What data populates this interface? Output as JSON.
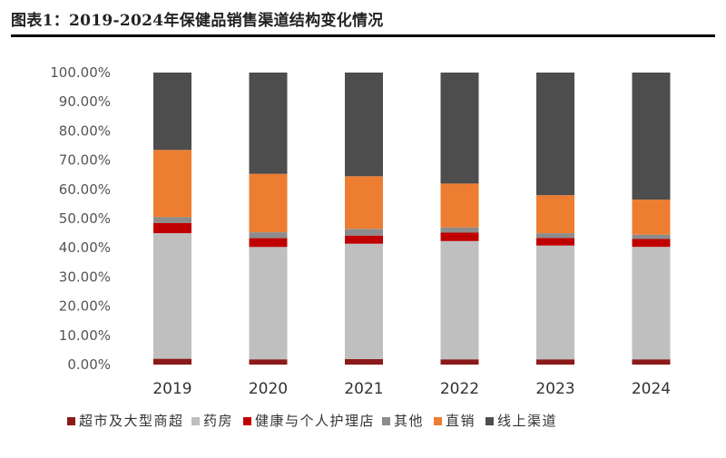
{
  "header": {
    "title": "图表1：2019-2024年保健品销售渠道结构变化情况"
  },
  "colors": {
    "超市及大型商超": "#8b1a1a",
    "药房": "#bfbfbf",
    "健康与个人护理店": "#c00000",
    "其他": "#8c8c8c",
    "直销": "#ed7d31",
    "线上渠道": "#4d4d4d"
  },
  "chart_data": {
    "type": "bar",
    "stacked": true,
    "categories": [
      "2019",
      "2020",
      "2021",
      "2022",
      "2023",
      "2024"
    ],
    "ylim": [
      0,
      100
    ],
    "yticks": [
      "0.00%",
      "10.00%",
      "20.00%",
      "30.00%",
      "40.00%",
      "50.00%",
      "60.00%",
      "70.00%",
      "80.00%",
      "90.00%",
      "100.00%"
    ],
    "series": [
      {
        "name": "超市及大型商超",
        "values": [
          2.0,
          1.8,
          1.9,
          1.8,
          1.8,
          1.8
        ]
      },
      {
        "name": "药房",
        "values": [
          43.0,
          38.5,
          39.5,
          40.5,
          39.0,
          38.5
        ]
      },
      {
        "name": "健康与个人护理店",
        "values": [
          3.5,
          3.0,
          2.8,
          2.9,
          2.6,
          2.7
        ]
      },
      {
        "name": "其他",
        "values": [
          2.0,
          2.0,
          2.3,
          1.8,
          1.6,
          1.5
        ]
      },
      {
        "name": "直销",
        "values": [
          23.0,
          20.0,
          18.0,
          15.0,
          13.0,
          12.0
        ]
      },
      {
        "name": "线上渠道",
        "values": [
          26.5,
          34.7,
          35.5,
          38.0,
          42.0,
          43.5
        ]
      }
    ],
    "legend_position": "bottom"
  }
}
